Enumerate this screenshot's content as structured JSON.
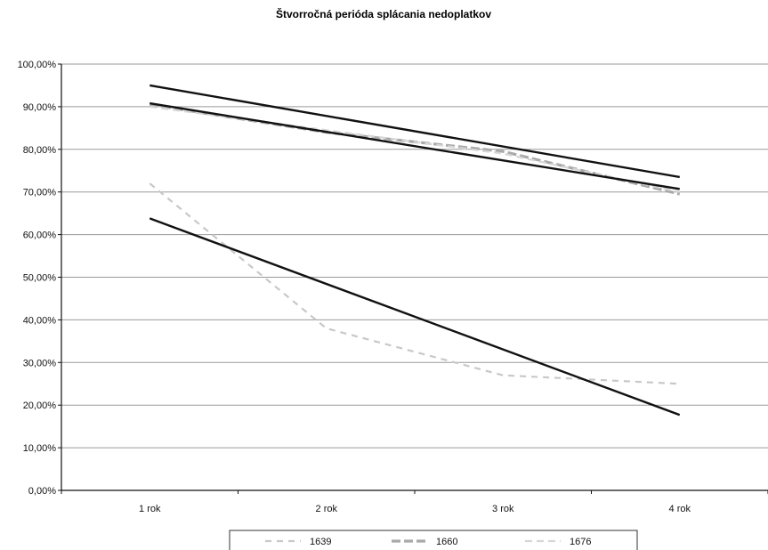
{
  "chart_data": {
    "type": "line",
    "title": "Štvorročná perióda splácania nedoplatkov",
    "categories": [
      "1 rok",
      "2 rok",
      "3 rok",
      "4 rok"
    ],
    "y_ticks": [
      "0,00%",
      "10,00%",
      "20,00%",
      "30,00%",
      "40,00%",
      "50,00%",
      "60,00%",
      "70,00%",
      "80,00%",
      "90,00%",
      "100,00%"
    ],
    "ylim": [
      0,
      100
    ],
    "series": [
      {
        "name": "1639",
        "values": [
          72,
          38,
          27,
          25
        ],
        "style": "dashed",
        "color": "#c8c8c8"
      },
      {
        "name": "1660",
        "values": [
          90.5,
          84,
          79.5,
          69.5
        ],
        "style": "dashed-thick",
        "color": "#a9a9a9"
      },
      {
        "name": "1676",
        "values": [
          90,
          84.5,
          79,
          70
        ],
        "style": "dashed-light",
        "color": "#d6d6d6"
      }
    ],
    "trendlines": [
      {
        "values": [
          63.8,
          48.4,
          33.1,
          17.7
        ],
        "color": "#111111"
      },
      {
        "values": [
          95,
          87.8,
          80.7,
          73.5
        ],
        "color": "#111111"
      },
      {
        "values": [
          90.8,
          84.1,
          77.4,
          70.7
        ],
        "color": "#111111"
      }
    ],
    "grid": true,
    "legend_position": "bottom"
  }
}
